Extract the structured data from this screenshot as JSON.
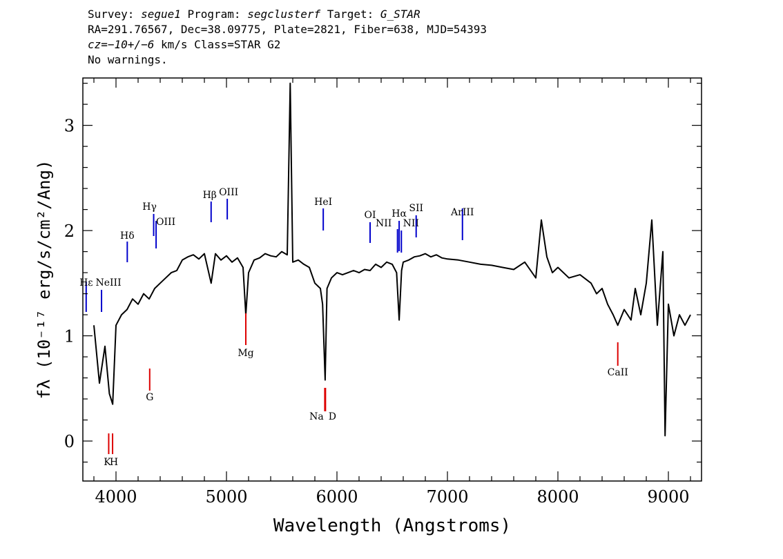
{
  "header": {
    "line1": {
      "survey_label": "Survey: ",
      "survey": "segue1",
      "program_label": " Program: ",
      "program": "segclusterf",
      "target_label": " Target: ",
      "target": "G_STAR"
    },
    "line2": "RA=291.76567, Dec=38.09775, Plate=2821, Fiber=638, MJD=54393",
    "line3": {
      "cz": "cz=−10+/−6",
      "rest": " km/s Class=STAR G2"
    },
    "line4": "No warnings."
  },
  "chart_data": {
    "type": "line",
    "xlabel": "Wavelength (Angstroms)",
    "ylabel": "fλ (10⁻¹⁷ erg/s/cm²/Ang)",
    "xlim": [
      3700,
      9300
    ],
    "ylim": [
      -0.38,
      3.45
    ],
    "xticks": [
      4000,
      5000,
      6000,
      7000,
      8000,
      9000
    ],
    "yticks": [
      0,
      1,
      2,
      3
    ],
    "grid": false,
    "series": [
      {
        "color": "#000000",
        "x": [
          3800,
          3850,
          3900,
          3940,
          3970,
          4000,
          4050,
          4100,
          4150,
          4200,
          4250,
          4300,
          4350,
          4400,
          4450,
          4500,
          4550,
          4600,
          4650,
          4700,
          4750,
          4800,
          4861,
          4900,
          4950,
          5000,
          5050,
          5100,
          5150,
          5175,
          5200,
          5250,
          5300,
          5350,
          5400,
          5450,
          5500,
          5550,
          5577,
          5600,
          5650,
          5700,
          5750,
          5800,
          5850,
          5870,
          5893,
          5910,
          5950,
          6000,
          6050,
          6100,
          6150,
          6200,
          6250,
          6300,
          6350,
          6400,
          6450,
          6500,
          6540,
          6563,
          6585,
          6600,
          6650,
          6700,
          6750,
          6800,
          6850,
          6900,
          6950,
          7000,
          7100,
          7200,
          7300,
          7400,
          7500,
          7600,
          7700,
          7800,
          7850,
          7900,
          7950,
          8000,
          8100,
          8200,
          8300,
          8350,
          8400,
          8450,
          8500,
          8542,
          8600,
          8662,
          8700,
          8750,
          8800,
          8850,
          8900,
          8950,
          8970,
          9000,
          9050,
          9100,
          9150,
          9200
        ],
        "y": [
          1.1,
          0.55,
          0.9,
          0.45,
          0.35,
          1.1,
          1.2,
          1.25,
          1.35,
          1.3,
          1.4,
          1.35,
          1.45,
          1.5,
          1.55,
          1.6,
          1.62,
          1.72,
          1.75,
          1.77,
          1.73,
          1.78,
          1.5,
          1.78,
          1.72,
          1.76,
          1.7,
          1.74,
          1.65,
          1.2,
          1.6,
          1.72,
          1.74,
          1.78,
          1.76,
          1.75,
          1.8,
          1.77,
          3.4,
          1.7,
          1.72,
          1.68,
          1.65,
          1.5,
          1.45,
          1.3,
          0.58,
          1.45,
          1.55,
          1.6,
          1.58,
          1.6,
          1.62,
          1.6,
          1.63,
          1.62,
          1.68,
          1.65,
          1.7,
          1.68,
          1.6,
          1.15,
          1.62,
          1.7,
          1.72,
          1.75,
          1.76,
          1.78,
          1.75,
          1.77,
          1.74,
          1.73,
          1.72,
          1.7,
          1.68,
          1.67,
          1.65,
          1.63,
          1.7,
          1.55,
          2.1,
          1.75,
          1.6,
          1.65,
          1.55,
          1.58,
          1.5,
          1.4,
          1.45,
          1.3,
          1.2,
          1.1,
          1.25,
          1.15,
          1.45,
          1.2,
          1.5,
          2.1,
          1.1,
          1.8,
          0.05,
          1.3,
          1.0,
          1.2,
          1.1,
          1.2
        ]
      }
    ],
    "annotations": [
      {
        "label": "Hε",
        "x": 3730,
        "color": "#0000cc"
      },
      {
        "label": "NeIII",
        "x": 3869,
        "color": "#0000cc"
      },
      {
        "label": "Hδ",
        "x": 4102,
        "color": "#0000cc"
      },
      {
        "label": "Hγ",
        "x": 4341,
        "color": "#0000cc"
      },
      {
        "label": "OIII",
        "x": 4363,
        "color": "#0000cc"
      },
      {
        "label": "Hβ",
        "x": 4861,
        "color": "#0000cc"
      },
      {
        "label": "OIII",
        "x": 5007,
        "color": "#0000cc"
      },
      {
        "label": "HeI",
        "x": 5876,
        "color": "#0000cc"
      },
      {
        "label": "OI",
        "x": 6300,
        "color": "#0000cc"
      },
      {
        "label": "NII",
        "x": 6548,
        "color": "#0000cc"
      },
      {
        "label": "Hα",
        "x": 6563,
        "color": "#0000cc"
      },
      {
        "label": "NII",
        "x": 6583,
        "color": "#0000cc"
      },
      {
        "label": "SII",
        "x": 6717,
        "color": "#0000cc"
      },
      {
        "label": "ArIII",
        "x": 7136,
        "color": "#0000cc"
      },
      {
        "label": "K",
        "x": 3934,
        "color": "#dd0000"
      },
      {
        "label": "H",
        "x": 3969,
        "color": "#dd0000"
      },
      {
        "label": "G",
        "x": 4305,
        "color": "#dd0000"
      },
      {
        "label": "Mg",
        "x": 5175,
        "color": "#dd0000"
      },
      {
        "label": "Na",
        "x": 5890,
        "color": "#dd0000"
      },
      {
        "label": "D",
        "x": 5896,
        "color": "#dd0000"
      },
      {
        "label": "CaII",
        "x": 8542,
        "color": "#dd0000"
      }
    ]
  }
}
